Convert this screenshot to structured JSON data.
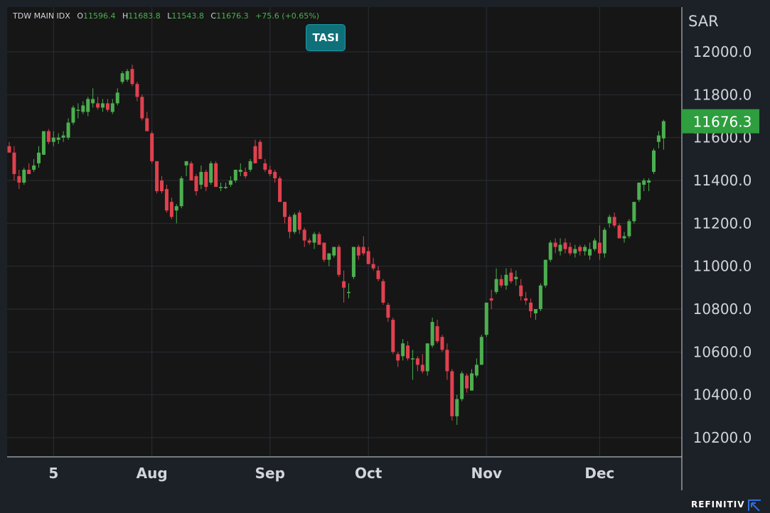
{
  "header": {
    "symbol": "TDW MAIN IDX",
    "open_label": "O",
    "open": "11596.4",
    "high_label": "H",
    "high": "11683.8",
    "low_label": "L",
    "low": "11543.8",
    "close_label": "C",
    "close": "11676.3",
    "change": "+75.6 (+0.65%)"
  },
  "badge": {
    "label": "TASI"
  },
  "brand": {
    "name": "REFINITIV",
    "icon": "refinitiv-logo-icon"
  },
  "colors": {
    "up": "#4caf50",
    "down": "#e0414f",
    "price_tag": "#2e9e3e",
    "badge": "#10707a",
    "background": "#1c2127"
  },
  "chart_data": {
    "type": "candlestick",
    "currency": "SAR",
    "last_price": "11676.3",
    "ylim": [
      10100,
      12200
    ],
    "y_ticks": [
      "10200.0",
      "10400.0",
      "10600.0",
      "10800.0",
      "11000.0",
      "11200.0",
      "11400.0",
      "11600.0",
      "11800.0",
      "12000.0"
    ],
    "y_tick_values": [
      10200,
      10400,
      10600,
      10800,
      11000,
      11200,
      11400,
      11600,
      11800,
      12000
    ],
    "x_labels": [
      "5",
      "Aug",
      "Sep",
      "Oct",
      "Nov",
      "Dec"
    ],
    "x_label_index": [
      9,
      29,
      53,
      73,
      97,
      120
    ],
    "grid": true,
    "candles": [
      [
        11560,
        11580,
        11530,
        11530
      ],
      [
        11530,
        11560,
        11400,
        11430
      ],
      [
        11420,
        11450,
        11360,
        11390
      ],
      [
        11390,
        11460,
        11380,
        11450
      ],
      [
        11450,
        11480,
        11430,
        11430
      ],
      [
        11450,
        11500,
        11440,
        11470
      ],
      [
        11480,
        11560,
        11460,
        11530
      ],
      [
        11520,
        11630,
        11520,
        11630
      ],
      [
        11630,
        11640,
        11570,
        11580
      ],
      [
        11580,
        11630,
        11560,
        11600
      ],
      [
        11590,
        11620,
        11570,
        11600
      ],
      [
        11600,
        11630,
        11580,
        11610
      ],
      [
        11600,
        11690,
        11590,
        11670
      ],
      [
        11670,
        11750,
        11660,
        11740
      ],
      [
        11730,
        11760,
        11690,
        11730
      ],
      [
        11720,
        11770,
        11710,
        11750
      ],
      [
        11720,
        11790,
        11700,
        11780
      ],
      [
        11760,
        11830,
        11740,
        11780
      ],
      [
        11760,
        11790,
        11730,
        11740
      ],
      [
        11740,
        11780,
        11720,
        11760
      ],
      [
        11760,
        11780,
        11720,
        11730
      ],
      [
        11720,
        11780,
        11710,
        11760
      ],
      [
        11760,
        11830,
        11750,
        11810
      ],
      [
        11860,
        11910,
        11850,
        11900
      ],
      [
        11870,
        11920,
        11860,
        11910
      ],
      [
        11920,
        11940,
        11840,
        11850
      ],
      [
        11850,
        11860,
        11770,
        11790
      ],
      [
        11790,
        11800,
        11680,
        11690
      ],
      [
        11690,
        11720,
        11640,
        11630
      ],
      [
        11620,
        11630,
        11480,
        11490
      ],
      [
        11490,
        11490,
        11340,
        11350
      ],
      [
        11400,
        11420,
        11340,
        11350
      ],
      [
        11360,
        11380,
        11250,
        11260
      ],
      [
        11300,
        11320,
        11220,
        11230
      ],
      [
        11260,
        11290,
        11200,
        11280
      ],
      [
        11280,
        11420,
        11270,
        11410
      ],
      [
        11470,
        11490,
        11420,
        11490
      ],
      [
        11480,
        11490,
        11400,
        11400
      ],
      [
        11420,
        11430,
        11330,
        11350
      ],
      [
        11380,
        11470,
        11360,
        11440
      ],
      [
        11440,
        11450,
        11350,
        11370
      ],
      [
        11390,
        11490,
        11380,
        11480
      ],
      [
        11480,
        11490,
        11370,
        11370
      ],
      [
        11370,
        11390,
        11350,
        11370
      ],
      [
        11370,
        11390,
        11360,
        11370
      ],
      [
        11380,
        11420,
        11370,
        11400
      ],
      [
        11400,
        11450,
        11390,
        11450
      ],
      [
        11440,
        11480,
        11420,
        11450
      ],
      [
        11440,
        11460,
        11410,
        11420
      ],
      [
        11450,
        11500,
        11440,
        11490
      ],
      [
        11560,
        11590,
        11480,
        11480
      ],
      [
        11580,
        11590,
        11500,
        11500
      ],
      [
        11480,
        11500,
        11440,
        11450
      ],
      [
        11450,
        11470,
        11420,
        11430
      ],
      [
        11440,
        11450,
        11390,
        11410
      ],
      [
        11410,
        11420,
        11300,
        11300
      ],
      [
        11300,
        11300,
        11200,
        11230
      ],
      [
        11230,
        11240,
        11130,
        11160
      ],
      [
        11160,
        11250,
        11150,
        11240
      ],
      [
        11250,
        11260,
        11150,
        11170
      ],
      [
        11170,
        11180,
        11090,
        11120
      ],
      [
        11120,
        11130,
        11100,
        11110
      ],
      [
        11110,
        11160,
        11080,
        11150
      ],
      [
        11150,
        11160,
        11100,
        11100
      ],
      [
        11110,
        11110,
        11020,
        11030
      ],
      [
        11030,
        11060,
        11000,
        11060
      ],
      [
        11050,
        11090,
        11040,
        11090
      ],
      [
        11090,
        11100,
        10950,
        10960
      ],
      [
        10930,
        10980,
        10830,
        10900
      ],
      [
        10880,
        10920,
        10850,
        10880
      ],
      [
        10950,
        11090,
        10940,
        11090
      ],
      [
        11090,
        11100,
        11030,
        11050
      ],
      [
        11090,
        11140,
        11050,
        11060
      ],
      [
        11070,
        11090,
        11010,
        11010
      ],
      [
        11010,
        11040,
        10980,
        10990
      ],
      [
        10980,
        11000,
        10930,
        10940
      ],
      [
        10930,
        10940,
        10820,
        10830
      ],
      [
        10820,
        10830,
        10740,
        10760
      ],
      [
        10750,
        10760,
        10590,
        10600
      ],
      [
        10590,
        10600,
        10530,
        10560
      ],
      [
        10580,
        10660,
        10560,
        10640
      ],
      [
        10630,
        10650,
        10560,
        10570
      ],
      [
        10570,
        10610,
        10470,
        10570
      ],
      [
        10570,
        10580,
        10510,
        10540
      ],
      [
        10540,
        10590,
        10500,
        10510
      ],
      [
        10510,
        10640,
        10490,
        10640
      ],
      [
        10630,
        10760,
        10620,
        10740
      ],
      [
        10720,
        10750,
        10640,
        10650
      ],
      [
        10670,
        10680,
        10600,
        10610
      ],
      [
        10610,
        10640,
        10470,
        10510
      ],
      [
        10510,
        10520,
        10280,
        10300
      ],
      [
        10300,
        10400,
        10260,
        10380
      ],
      [
        10380,
        10510,
        10370,
        10500
      ],
      [
        10490,
        10500,
        10410,
        10430
      ],
      [
        10420,
        10520,
        10420,
        10500
      ],
      [
        10490,
        10570,
        10480,
        10540
      ],
      [
        10540,
        10680,
        10540,
        10670
      ],
      [
        10680,
        10830,
        10670,
        10830
      ],
      [
        10850,
        10890,
        10800,
        10840
      ],
      [
        10880,
        10990,
        10870,
        10940
      ],
      [
        10940,
        10960,
        10900,
        10910
      ],
      [
        10910,
        10990,
        10890,
        10960
      ],
      [
        10970,
        10990,
        10920,
        10930
      ],
      [
        10940,
        10980,
        10910,
        10950
      ],
      [
        10910,
        10940,
        10840,
        10860
      ],
      [
        10850,
        10880,
        10820,
        10840
      ],
      [
        10830,
        10850,
        10760,
        10790
      ],
      [
        10780,
        10800,
        10750,
        10800
      ],
      [
        10800,
        10920,
        10790,
        10910
      ],
      [
        10910,
        11030,
        10900,
        11030
      ],
      [
        11030,
        11120,
        11020,
        11110
      ],
      [
        11110,
        11130,
        11060,
        11090
      ],
      [
        11070,
        11130,
        11050,
        11100
      ],
      [
        11110,
        11130,
        11060,
        11080
      ],
      [
        11090,
        11110,
        11050,
        11060
      ],
      [
        11060,
        11100,
        11040,
        11080
      ],
      [
        11090,
        11100,
        11050,
        11070
      ],
      [
        11070,
        11100,
        11050,
        11090
      ],
      [
        11050,
        11110,
        11030,
        11080
      ],
      [
        11080,
        11130,
        11070,
        11120
      ],
      [
        11110,
        11190,
        11030,
        11060
      ],
      [
        11060,
        11180,
        11040,
        11170
      ],
      [
        11200,
        11240,
        11180,
        11230
      ],
      [
        11230,
        11250,
        11180,
        11190
      ],
      [
        11190,
        11200,
        11140,
        11130
      ],
      [
        11130,
        11160,
        11110,
        11140
      ],
      [
        11140,
        11220,
        11130,
        11210
      ],
      [
        11210,
        11300,
        11200,
        11300
      ],
      [
        11310,
        11390,
        11300,
        11390
      ],
      [
        11380,
        11410,
        11350,
        11400
      ],
      [
        11390,
        11410,
        11350,
        11400
      ],
      [
        11440,
        11550,
        11430,
        11540
      ],
      [
        11580,
        11630,
        11550,
        11610
      ],
      [
        11596.4,
        11683.8,
        11543.8,
        11676.3
      ]
    ]
  }
}
